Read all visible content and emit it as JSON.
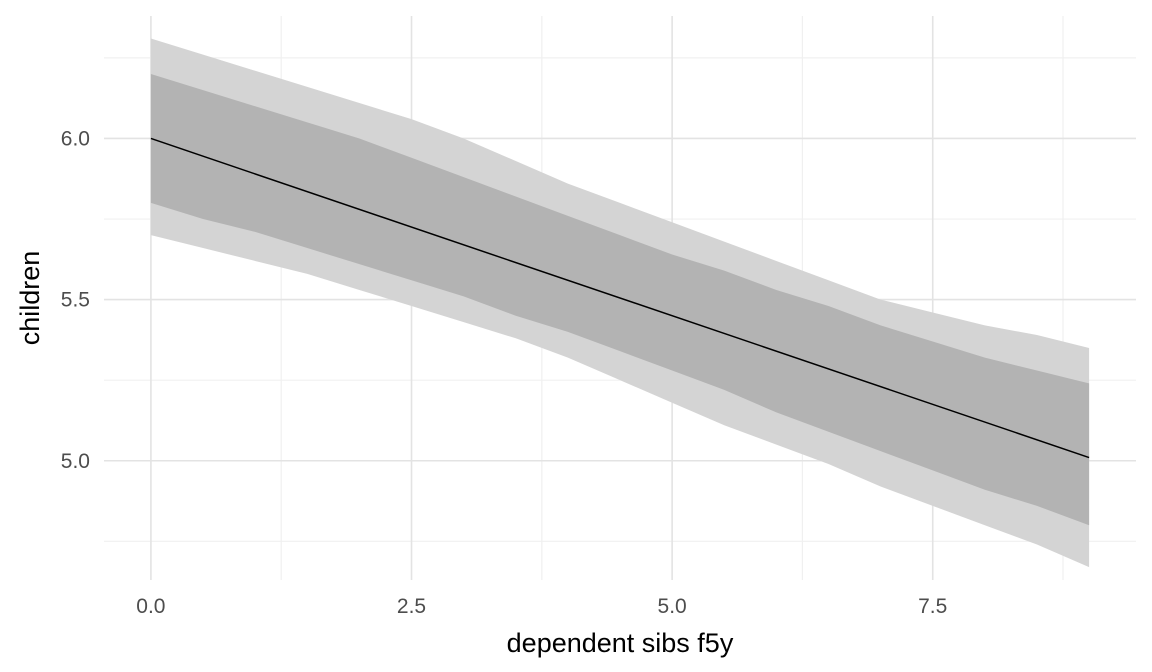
{
  "chart_data": {
    "type": "area",
    "title": "",
    "xlabel": "dependent sibs f5y",
    "ylabel": "children",
    "xlim": [
      -0.45,
      9.45
    ],
    "ylim": [
      4.63,
      6.38
    ],
    "x_ticks": [
      0.0,
      2.5,
      5.0,
      7.5
    ],
    "x_tick_labels": [
      "0.0",
      "2.5",
      "5.0",
      "7.5"
    ],
    "x_minor_ticks": [
      1.25,
      3.75,
      6.25,
      8.75
    ],
    "y_ticks": [
      5.0,
      5.5,
      6.0
    ],
    "y_tick_labels": [
      "5.0",
      "5.5",
      "6.0"
    ],
    "y_minor_ticks": [
      4.75,
      5.25,
      5.75,
      6.25
    ],
    "grid": true,
    "legend": "none",
    "series": [
      {
        "kind": "ribbon-outer",
        "color": "#d4d4d4",
        "x": [
          0,
          0.5,
          1,
          1.5,
          2,
          2.5,
          3,
          3.5,
          4,
          4.5,
          5,
          5.5,
          6,
          6.5,
          7,
          7.5,
          8,
          8.5,
          9
        ],
        "lower": [
          5.7,
          5.66,
          5.62,
          5.58,
          5.53,
          5.48,
          5.43,
          5.38,
          5.32,
          5.25,
          5.18,
          5.11,
          5.05,
          4.99,
          4.92,
          4.86,
          4.8,
          4.74,
          4.67
        ],
        "upper": [
          6.31,
          6.26,
          6.21,
          6.16,
          6.11,
          6.06,
          6.0,
          5.93,
          5.86,
          5.8,
          5.74,
          5.68,
          5.62,
          5.56,
          5.5,
          5.46,
          5.42,
          5.39,
          5.35
        ]
      },
      {
        "kind": "ribbon-inner",
        "color": "#b3b3b3",
        "x": [
          0,
          0.5,
          1,
          1.5,
          2,
          2.5,
          3,
          3.5,
          4,
          4.5,
          5,
          5.5,
          6,
          6.5,
          7,
          7.5,
          8,
          8.5,
          9
        ],
        "lower": [
          5.8,
          5.75,
          5.71,
          5.66,
          5.61,
          5.56,
          5.51,
          5.45,
          5.4,
          5.34,
          5.28,
          5.22,
          5.15,
          5.09,
          5.03,
          4.97,
          4.91,
          4.86,
          4.8
        ],
        "upper": [
          6.2,
          6.15,
          6.1,
          6.05,
          6.0,
          5.94,
          5.88,
          5.82,
          5.76,
          5.7,
          5.64,
          5.59,
          5.53,
          5.48,
          5.42,
          5.37,
          5.32,
          5.28,
          5.24
        ]
      },
      {
        "kind": "line",
        "color": "#000000",
        "x": [
          0,
          9
        ],
        "y": [
          6.0,
          5.01
        ]
      }
    ]
  }
}
